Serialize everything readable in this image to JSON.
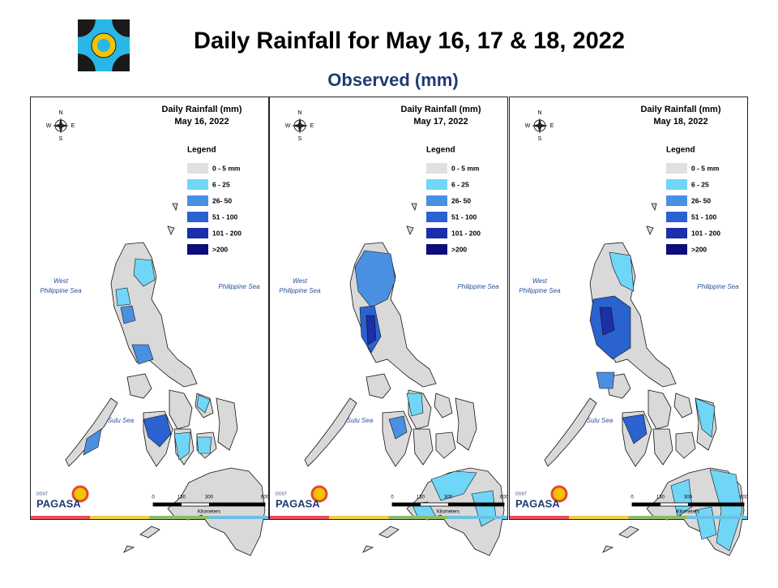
{
  "header": {
    "title": "Daily Rainfall for May 16, 17 & 18, 2022",
    "subtitle": "Observed (mm)"
  },
  "panels": [
    {
      "title": "Daily Rainfall (mm)",
      "date": "May 16, 2022",
      "legend_title": "Legend",
      "legend": [
        {
          "label": "0 - 5 mm",
          "color": "#e0e0e0"
        },
        {
          "label": "6 - 25",
          "color": "#6fd6f7"
        },
        {
          "label": "26- 50",
          "color": "#4a90e2"
        },
        {
          "label": "51 - 100",
          "color": "#2a62cf"
        },
        {
          "label": "101 - 200",
          "color": "#1b2fa8"
        },
        {
          "label": ">200",
          "color": "#0d0d7a"
        }
      ],
      "seas": {
        "west_line1": "West",
        "west_line2": "Philippine Sea",
        "east": "Philippine Sea",
        "south": "Sulu Sea"
      },
      "compass": {
        "n": "N",
        "s": "S",
        "e": "E",
        "w": "W"
      },
      "scale": {
        "ticks": [
          "0",
          "150",
          "300",
          "600"
        ],
        "unit": "Kilometers"
      },
      "logo": {
        "agency": "DOST",
        "name": "PAGASA"
      }
    },
    {
      "title": "Daily Rainfall (mm)",
      "date": "May 17, 2022",
      "legend_title": "Legend",
      "legend": [
        {
          "label": "0 - 5 mm",
          "color": "#e0e0e0"
        },
        {
          "label": "6 - 25",
          "color": "#6fd6f7"
        },
        {
          "label": "26- 50",
          "color": "#4a90e2"
        },
        {
          "label": "51 - 100",
          "color": "#2a62cf"
        },
        {
          "label": "101 - 200",
          "color": "#1b2fa8"
        },
        {
          "label": ">200",
          "color": "#0d0d7a"
        }
      ],
      "seas": {
        "west_line1": "West",
        "west_line2": "Philippine Sea",
        "east": "Philippine Sea",
        "south": "Sulu Sea"
      },
      "compass": {
        "n": "N",
        "s": "S",
        "e": "E",
        "w": "W"
      },
      "scale": {
        "ticks": [
          "0",
          "150",
          "300",
          "600"
        ],
        "unit": "Kilometers"
      },
      "logo": {
        "agency": "DOST",
        "name": "PAGASA"
      }
    },
    {
      "title": "Daily Rainfall (mm)",
      "date": "May 18, 2022",
      "legend_title": "Legend",
      "legend": [
        {
          "label": "0 - 5 mm",
          "color": "#e0e0e0"
        },
        {
          "label": "6 - 25",
          "color": "#6fd6f7"
        },
        {
          "label": "26- 50",
          "color": "#4a90e2"
        },
        {
          "label": "51 - 100",
          "color": "#2a62cf"
        },
        {
          "label": "101 - 200",
          "color": "#1b2fa8"
        },
        {
          "label": ">200",
          "color": "#0d0d7a"
        }
      ],
      "seas": {
        "west_line1": "West",
        "west_line2": "Philippine Sea",
        "east": "Philippine Sea",
        "south": "Sulu Sea"
      },
      "compass": {
        "n": "N",
        "s": "S",
        "e": "E",
        "w": "W"
      },
      "scale": {
        "ticks": [
          "0",
          "150",
          "300",
          "600"
        ],
        "unit": "Kilometers"
      },
      "logo": {
        "agency": "DOST",
        "name": "PAGASA"
      }
    }
  ]
}
